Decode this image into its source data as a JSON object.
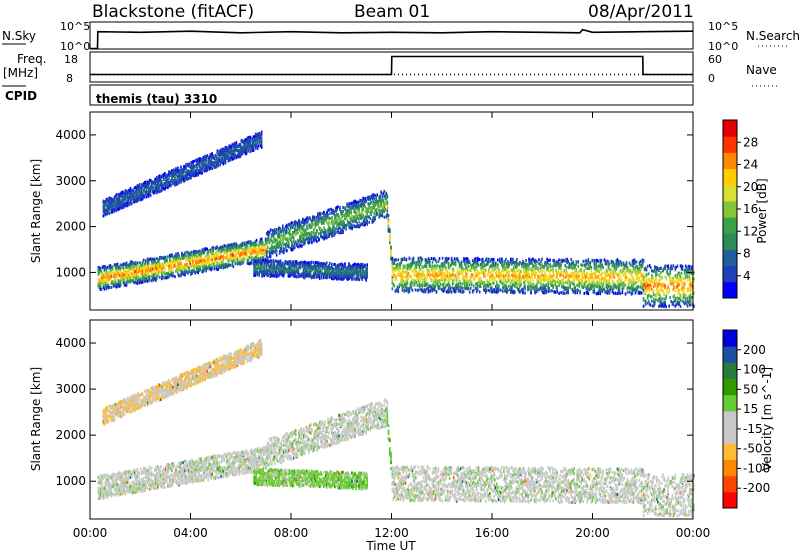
{
  "header": {
    "station": "Blackstone (fitACF)",
    "beam": "Beam 01",
    "date": "08/Apr/2011"
  },
  "status_panels": {
    "nsky_label": "N.Sky",
    "nsearch_label": "N.Search",
    "noise_ticks": [
      "10^5",
      "10^0"
    ],
    "freq_label_1": "Freq.",
    "freq_label_2": "[MHz]",
    "freq_ticks": [
      "18",
      "8"
    ],
    "nave_label": "Nave",
    "nave_ticks": [
      "60",
      "0"
    ],
    "cpid_label": "CPID",
    "cpid_text": "themis (tau) 3310"
  },
  "time_axis": {
    "label": "Time UT",
    "ticks": [
      "00:00",
      "04:00",
      "08:00",
      "12:00",
      "16:00",
      "20:00",
      "00:00"
    ]
  },
  "chart_data": [
    {
      "type": "line",
      "name": "noise-sky",
      "x_hours": [
        0,
        0.3,
        0.31,
        2,
        4,
        6,
        8,
        10,
        12,
        14,
        16,
        18,
        19.5,
        19.6,
        20,
        22,
        24
      ],
      "y_log10": [
        0.1,
        0.1,
        3.2,
        3.1,
        3.3,
        3.0,
        3.2,
        3.0,
        3.1,
        3.0,
        3.2,
        3.1,
        3.0,
        3.6,
        3.1,
        3.2,
        3.3
      ],
      "ylim_log10": [
        0,
        5
      ]
    },
    {
      "type": "line",
      "name": "frequency-nave",
      "x_hours": [
        0,
        12,
        12.01,
        22,
        22.01,
        24
      ],
      "freq_mhz": [
        10.5,
        10.5,
        16.5,
        16.5,
        10.5,
        10.5
      ],
      "nave": [
        15,
        15,
        15,
        15,
        15,
        15
      ],
      "freq_ylim": [
        8,
        18
      ],
      "nave_ylim": [
        0,
        60
      ]
    },
    {
      "type": "heatmap",
      "title": "",
      "xlabel": "Time UT",
      "ylabel": "Slant Range [km]",
      "xlim_hours": [
        0,
        24
      ],
      "ylim_km": [
        180,
        4500
      ],
      "y_ticks": [
        1000,
        2000,
        3000,
        4000
      ],
      "colorbar": {
        "label": "Power [dB]",
        "ticks": [
          "28",
          "24",
          "20",
          "16",
          "12",
          "8",
          "4"
        ],
        "colors": [
          "#0000ff",
          "#1f3fb5",
          "#1f5f9a",
          "#2e8b57",
          "#3ba04a",
          "#86c53a",
          "#d9e030",
          "#ffcc00",
          "#ff8800",
          "#ff3300",
          "#e00000"
        ]
      },
      "bands": [
        {
          "t0": 0.3,
          "t1": 7.0,
          "r_start": 860,
          "r_end": 1500,
          "thick": 500,
          "peak": 26
        },
        {
          "t0": 7.0,
          "t1": 11.8,
          "r_start": 1600,
          "r_end": 2500,
          "thick": 600,
          "peak": 16
        },
        {
          "t0": 6.5,
          "t1": 11.0,
          "r_start": 1100,
          "r_end": 1000,
          "thick": 350,
          "peak": 10
        },
        {
          "t0": 11.8,
          "t1": 12.0,
          "r_start": 2400,
          "r_end": 1100,
          "thick": 400,
          "peak": 24
        },
        {
          "t0": 12.0,
          "t1": 22.0,
          "r_start": 950,
          "r_end": 900,
          "thick": 750,
          "peak": 24
        },
        {
          "t0": 22.0,
          "t1": 24.0,
          "r_start": 700,
          "r_end": 700,
          "thick": 900,
          "peak": 26
        },
        {
          "t0": 0.5,
          "t1": 6.8,
          "r_start": 2400,
          "r_end": 3900,
          "thick": 350,
          "peak": 8
        }
      ]
    },
    {
      "type": "heatmap",
      "title": "",
      "xlabel": "Time UT",
      "ylabel": "Slant Range [km]",
      "xlim_hours": [
        0,
        24
      ],
      "ylim_km": [
        180,
        4500
      ],
      "y_ticks": [
        1000,
        2000,
        3000,
        4000
      ],
      "colorbar": {
        "label": "Velocity [m s^-1]",
        "ticks": [
          "200",
          "100",
          "50",
          "15",
          "-15",
          "-50",
          "-100",
          "-200"
        ],
        "colors": [
          "#ff0000",
          "#ff4400",
          "#ff8800",
          "#ffbb33",
          "#c8c8c8",
          "#c8c8c8",
          "#66cc33",
          "#339900",
          "#2a7a3a",
          "#1f4fa0",
          "#0000dd"
        ]
      },
      "bands": [
        {
          "t0": 0.3,
          "t1": 7.0,
          "r_start": 860,
          "r_end": 1500,
          "thick": 500,
          "vel": 0
        },
        {
          "t0": 7.0,
          "t1": 11.8,
          "r_start": 1600,
          "r_end": 2500,
          "thick": 600,
          "vel": 0
        },
        {
          "t0": 6.5,
          "t1": 11.0,
          "r_start": 1100,
          "r_end": 1000,
          "thick": 350,
          "vel": 40
        },
        {
          "t0": 11.8,
          "t1": 12.0,
          "r_start": 2400,
          "r_end": 1100,
          "thick": 400,
          "vel": 50
        },
        {
          "t0": 12.0,
          "t1": 22.0,
          "r_start": 950,
          "r_end": 900,
          "thick": 750,
          "vel": 0
        },
        {
          "t0": 22.0,
          "t1": 24.0,
          "r_start": 700,
          "r_end": 700,
          "thick": 900,
          "vel": 0
        },
        {
          "t0": 0.5,
          "t1": 6.8,
          "r_start": 2400,
          "r_end": 3900,
          "thick": 350,
          "vel": -60
        }
      ]
    }
  ]
}
